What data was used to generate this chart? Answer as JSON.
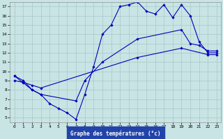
{
  "title": "Graphe des températures (°c)",
  "bg_color": "#c8e4e4",
  "grid_color": "#a8c8c8",
  "line_color": "#0000bb",
  "xlim": [
    -0.5,
    23.5
  ],
  "ylim": [
    4.5,
    17.5
  ],
  "xticks": [
    0,
    1,
    2,
    3,
    4,
    5,
    6,
    7,
    8,
    9,
    10,
    11,
    12,
    13,
    14,
    15,
    16,
    17,
    18,
    19,
    20,
    21,
    22,
    23
  ],
  "yticks": [
    5,
    6,
    7,
    8,
    9,
    10,
    11,
    12,
    13,
    14,
    15,
    16,
    17
  ],
  "label_bg_color": "#2244aa",
  "label_fg_color": "#ffffff",
  "series": [
    {
      "x": [
        0,
        1,
        2,
        3,
        4,
        5,
        6,
        7,
        8,
        9,
        10,
        11,
        12,
        13,
        14,
        15,
        16,
        17,
        18,
        19,
        20,
        21,
        22,
        23
      ],
      "y": [
        9.5,
        9.0,
        8.0,
        7.5,
        6.5,
        6.0,
        5.5,
        4.8,
        7.5,
        10.5,
        14.0,
        15.0,
        17.0,
        17.2,
        17.5,
        16.5,
        16.2,
        17.2,
        15.8,
        17.2,
        16.0,
        13.2,
        12.0,
        12.0
      ]
    },
    {
      "x": [
        0,
        2,
        3,
        7,
        8,
        10,
        14,
        19,
        20,
        21,
        22,
        23
      ],
      "y": [
        9.5,
        8.0,
        7.5,
        6.8,
        9.0,
        11.0,
        13.5,
        14.5,
        13.0,
        12.8,
        12.2,
        12.2
      ]
    },
    {
      "x": [
        0,
        1,
        2,
        3,
        14,
        19,
        22,
        23
      ],
      "y": [
        9.0,
        8.8,
        8.5,
        8.2,
        11.5,
        12.5,
        11.8,
        11.8
      ]
    }
  ]
}
